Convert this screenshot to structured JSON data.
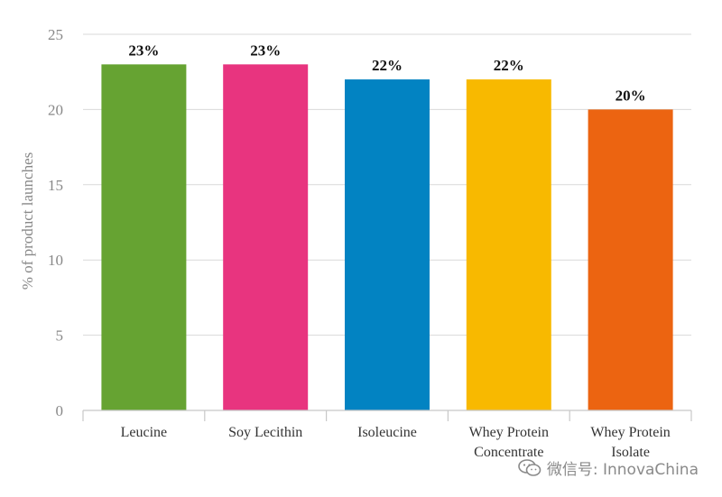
{
  "chart_data": {
    "type": "bar",
    "title": "",
    "xlabel": "",
    "ylabel": "% of product launches",
    "ylim": [
      0,
      25
    ],
    "yticks": [
      0,
      5,
      10,
      15,
      20,
      25
    ],
    "grid": true,
    "categories": [
      [
        "Leucine"
      ],
      [
        "Soy Lecithin"
      ],
      [
        "Isoleucine"
      ],
      [
        "Whey Protein",
        "Concentrate"
      ],
      [
        "Whey Protein",
        "Isolate"
      ]
    ],
    "values": [
      23,
      23,
      22,
      22,
      20
    ],
    "data_labels": [
      "23%",
      "23%",
      "22%",
      "22%",
      "20%"
    ],
    "colors": [
      "#66a332",
      "#e8347f",
      "#0283c2",
      "#f8b900",
      "#ec6411"
    ]
  },
  "watermark": {
    "text": "微信号: InnovaChina",
    "icon": "wechat-icon"
  }
}
